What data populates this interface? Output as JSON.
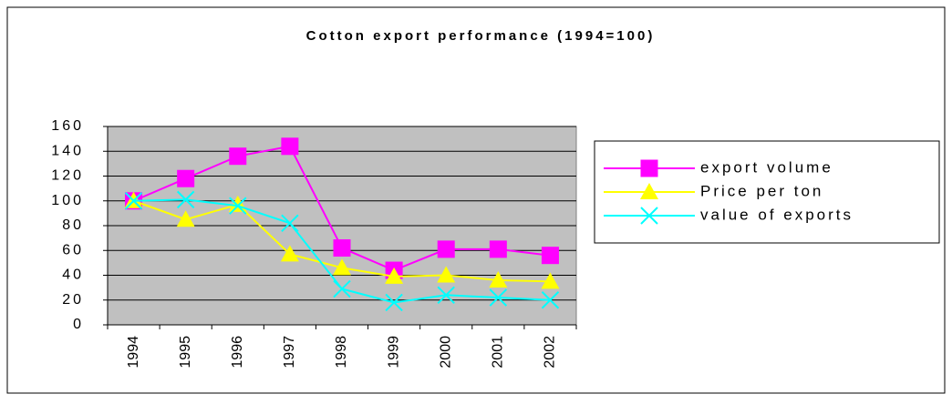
{
  "chart_data": {
    "type": "line",
    "title": "Cotton export performance (1994=100)",
    "categories": [
      "1994",
      "1995",
      "1996",
      "1997",
      "1998",
      "1999",
      "2000",
      "2001",
      "2002"
    ],
    "series": [
      {
        "name": "export volume",
        "color": "#ff00ff",
        "marker": "square",
        "values": [
          100,
          118,
          136,
          144,
          62,
          44,
          61,
          61,
          56
        ]
      },
      {
        "name": "Price per ton",
        "color": "#ffff00",
        "marker": "triangle",
        "values": [
          100,
          85,
          97,
          57,
          46,
          39,
          40,
          36,
          35
        ]
      },
      {
        "name": "value of exports",
        "color": "#00ffff",
        "marker": "x",
        "values": [
          100,
          101,
          96,
          82,
          29,
          18,
          24,
          22,
          20
        ]
      }
    ],
    "ylim": [
      0,
      160
    ],
    "yticks": [
      0,
      20,
      40,
      60,
      80,
      100,
      120,
      140,
      160
    ],
    "grid": true,
    "plot_background": "#c0c0c0",
    "legend": "right"
  }
}
